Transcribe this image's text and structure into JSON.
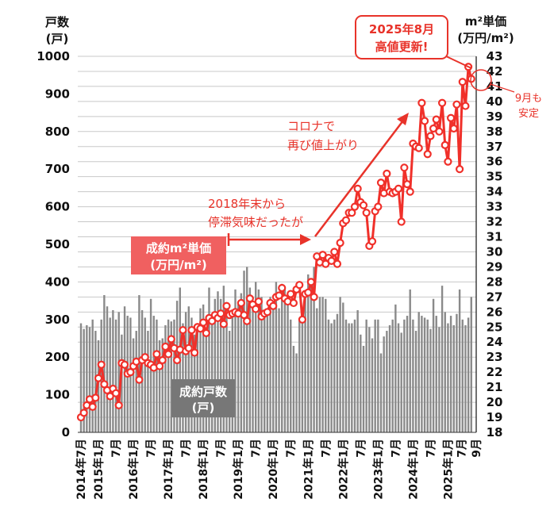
{
  "chart_data": {
    "type": "bar+line",
    "left_axis": {
      "title_line1": "戸数",
      "title_line2": "(戸)",
      "ylim": [
        0,
        1000
      ],
      "ticks": [
        "0",
        "100",
        "200",
        "300",
        "400",
        "500",
        "600",
        "700",
        "800",
        "900",
        "1000"
      ]
    },
    "right_axis": {
      "title_line1": "m²単価",
      "title_line2": "(万円/m²)",
      "ylim": [
        18,
        43
      ],
      "ticks": [
        "18",
        "19",
        "20",
        "21",
        "22",
        "23",
        "24",
        "25",
        "26",
        "27",
        "28",
        "29",
        "30",
        "31",
        "32",
        "33",
        "34",
        "35",
        "36",
        "37",
        "38",
        "39",
        "40",
        "41",
        "42",
        "43"
      ]
    },
    "x_start": "2014-07",
    "x_end": "2025-09",
    "x_tick_labels": [
      "2014年7月",
      "2015年1月",
      "7月",
      "2016年1月",
      "7月",
      "2017年1月",
      "7月",
      "2018年1月",
      "7月",
      "2019年1月",
      "7月",
      "2020年1月",
      "7月",
      "2021年1月",
      "7月",
      "2022年1月",
      "7月",
      "2023年1月",
      "7月",
      "2024年1月",
      "7月",
      "2025年1月",
      "7月",
      "9月"
    ],
    "grid": true,
    "series": [
      {
        "name": "成約戸数",
        "unit": "(戸)",
        "type": "bar",
        "axis": "left",
        "color": "#8a8a8a",
        "values": [
          290,
          275,
          285,
          280,
          300,
          270,
          245,
          300,
          365,
          335,
          305,
          325,
          300,
          320,
          260,
          335,
          310,
          305,
          250,
          270,
          365,
          325,
          305,
          270,
          355,
          310,
          300,
          245,
          250,
          285,
          300,
          295,
          300,
          350,
          385,
          290,
          320,
          335,
          305,
          260,
          290,
          330,
          340,
          265,
          385,
          300,
          355,
          375,
          355,
          390,
          310,
          270,
          310,
          380,
          340,
          370,
          430,
          440,
          385,
          350,
          400,
          380,
          360,
          315,
          320,
          360,
          340,
          400,
          330,
          395,
          380,
          360,
          300,
          230,
          210,
          300,
          330,
          370,
          420,
          410,
          440,
          330,
          360,
          360,
          355,
          300,
          290,
          300,
          315,
          360,
          345,
          300,
          290,
          290,
          300,
          325,
          260,
          230,
          300,
          280,
          250,
          300,
          300,
          210,
          255,
          270,
          285,
          300,
          340,
          290,
          265,
          300,
          310,
          380,
          300,
          270,
          320,
          310,
          305,
          300,
          275,
          355,
          310,
          280,
          390,
          320,
          290,
          310,
          285,
          315,
          380,
          300,
          285,
          305,
          360
        ]
      },
      {
        "name": "成約m²単価",
        "unit": "(万円/m²)",
        "type": "line",
        "axis": "right",
        "color": "#f0302a",
        "values": [
          19.0,
          19.3,
          19.8,
          20.2,
          19.7,
          20.3,
          21.6,
          22.5,
          21.2,
          20.8,
          20.4,
          20.9,
          20.6,
          19.8,
          22.6,
          22.5,
          21.9,
          22.0,
          22.4,
          22.7,
          21.5,
          22.8,
          23.0,
          22.6,
          22.5,
          22.3,
          23.2,
          22.4,
          22.8,
          23.7,
          23.2,
          24.2,
          23.6,
          22.8,
          23.5,
          24.8,
          23.4,
          23.6,
          24.8,
          23.3,
          25.0,
          24.9,
          25.3,
          24.6,
          25.6,
          25.4,
          25.8,
          25.6,
          25.9,
          25.2,
          26.4,
          25.8,
          25.9,
          26.0,
          25.9,
          26.6,
          25.8,
          25.4,
          26.9,
          26.5,
          26.2,
          26.7,
          25.7,
          25.9,
          26.0,
          26.6,
          26.4,
          27.0,
          27.1,
          27.6,
          26.9,
          26.7,
          27.2,
          26.6,
          27.5,
          27.8,
          25.5,
          27.2,
          27.3,
          28.0,
          27.0,
          29.7,
          29.3,
          29.8,
          29.2,
          29.6,
          29.4,
          30.0,
          29.2,
          30.6,
          31.9,
          32.1,
          32.6,
          32.6,
          33.0,
          34.2,
          33.3,
          33.1,
          32.6,
          30.4,
          30.7,
          32.7,
          33.0,
          34.6,
          33.9,
          35.2,
          34.0,
          33.9,
          34.0,
          34.2,
          32.0,
          35.6,
          34.5,
          34.0,
          37.2,
          37.0,
          36.9,
          39.9,
          38.7,
          36.5,
          37.7,
          38.2,
          38.8,
          38.0,
          39.9,
          37.1,
          36.0,
          38.9,
          38.2,
          39.8,
          35.5,
          41.3,
          39.7,
          42.3,
          41.5
        ]
      }
    ],
    "annotations": {
      "price_label_line1": "成約m²単価",
      "price_label_line2": "(万円/m²)",
      "units_label_line1": "成約戸数",
      "units_label_line2": "(戸)",
      "stagnation_line1": "2018年末から",
      "stagnation_line2": "停滞気味だったが",
      "covid_line1": "コロナで",
      "covid_line2": "再び値上がり",
      "record_line1": "2025年8月",
      "record_line2": "高値更新!",
      "september_line1": "9月も",
      "september_line2": "安定"
    }
  }
}
